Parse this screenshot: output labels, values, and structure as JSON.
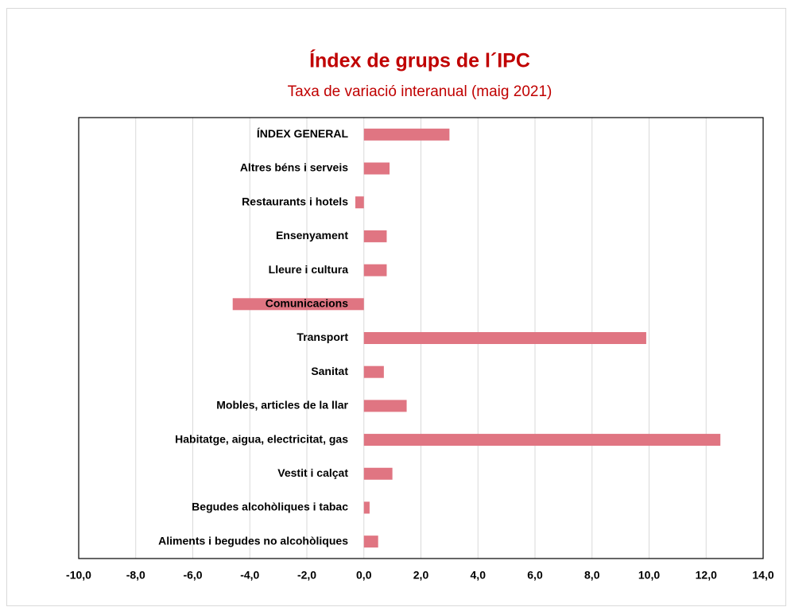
{
  "chart_data": {
    "type": "bar",
    "orientation": "horizontal",
    "title": "Índex de grups de l´IPC",
    "subtitle": "Taxa de variació interanual (maig 2021)",
    "categories": [
      "ÍNDEX GENERAL",
      "Altres béns i serveis",
      "Restaurants i hotels",
      "Ensenyament",
      "Lleure i cultura",
      "Comunicacions",
      "Transport",
      "Sanitat",
      "Mobles, articles de la llar",
      "Habitatge, aigua, electricitat, gas",
      "Vestit i calçat",
      "Begudes alcohòliques i tabac",
      "Aliments i begudes no alcohòliques"
    ],
    "values": [
      3.0,
      0.9,
      -0.3,
      0.8,
      0.8,
      -4.6,
      9.9,
      0.7,
      1.5,
      12.5,
      1.0,
      0.2,
      0.5
    ],
    "color": "#e07582",
    "xlim": [
      -10,
      14
    ],
    "xticks": [
      {
        "value": -10,
        "label": "-10,0"
      },
      {
        "value": -8,
        "label": "-8,0"
      },
      {
        "value": -6,
        "label": "-6,0"
      },
      {
        "value": -4,
        "label": "-4,0"
      },
      {
        "value": -2,
        "label": "-2,0"
      },
      {
        "value": 0,
        "label": "0,0"
      },
      {
        "value": 2,
        "label": "2,0"
      },
      {
        "value": 4,
        "label": "4,0"
      },
      {
        "value": 6,
        "label": "6,0"
      },
      {
        "value": 8,
        "label": "8,0"
      },
      {
        "value": 10,
        "label": "10,0"
      },
      {
        "value": 12,
        "label": "12,0"
      },
      {
        "value": 14,
        "label": "14,0"
      }
    ],
    "grid": true
  }
}
